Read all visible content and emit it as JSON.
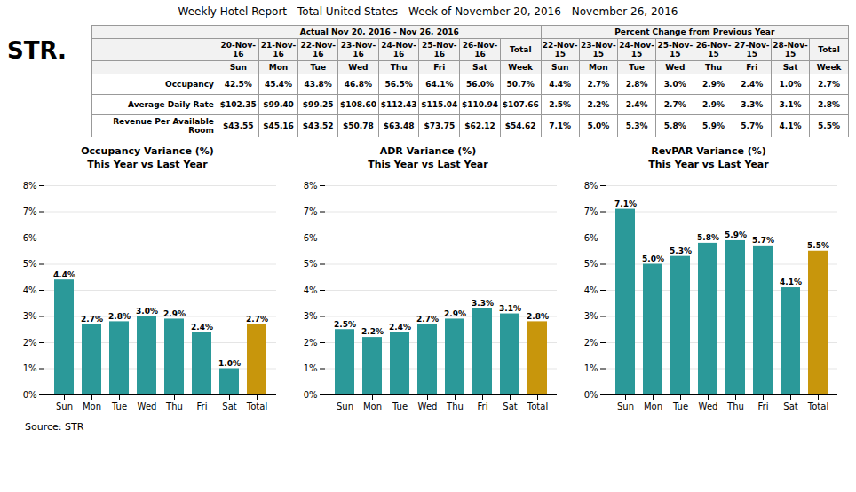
{
  "title": "Weekly Hotel Report - Total United States - Week of November 20, 2016 - November 26, 2016",
  "logo": "STR.",
  "source": "Source: STR",
  "table": {
    "header1": "Actual Nov 20, 2016 - Nov 26, 2016",
    "header2": "Percent Change from Previous Year",
    "col_dates_actual": [
      "20-Nov-16",
      "21-Nov-16",
      "22-Nov-16",
      "23-Nov-16",
      "24-Nov-16",
      "25-Nov-16",
      "26-Nov-16",
      "Total"
    ],
    "col_days_actual": [
      "Sun",
      "Mon",
      "Tue",
      "Wed",
      "Thu",
      "Fri",
      "Sat",
      "Week"
    ],
    "col_dates_pct": [
      "22-Nov-15",
      "23-Nov-15",
      "24-Nov-15",
      "25-Nov-15",
      "26-Nov-15",
      "27-Nov-15",
      "28-Nov-15",
      "Total"
    ],
    "col_days_pct": [
      "Sun",
      "Mon",
      "Tue",
      "Wed",
      "Thu",
      "Fri",
      "Sat",
      "Week"
    ],
    "rows": [
      {
        "label": "Occupancy",
        "actual": [
          "42.5%",
          "45.4%",
          "43.8%",
          "46.8%",
          "56.5%",
          "64.1%",
          "56.0%",
          "50.7%"
        ],
        "pct": [
          "4.4%",
          "2.7%",
          "2.8%",
          "3.0%",
          "2.9%",
          "2.4%",
          "1.0%",
          "2.7%"
        ]
      },
      {
        "label": "Average Daily Rate",
        "actual": [
          "$102.35",
          "$99.40",
          "$99.25",
          "$108.60",
          "$112.43",
          "$115.04",
          "$110.94",
          "$107.66"
        ],
        "pct": [
          "2.5%",
          "2.2%",
          "2.4%",
          "2.7%",
          "2.9%",
          "3.3%",
          "3.1%",
          "2.8%"
        ]
      },
      {
        "label": "Revenue Per Available Room",
        "actual": [
          "$43.55",
          "$45.16",
          "$43.52",
          "$50.78",
          "$63.48",
          "$73.75",
          "$62.12",
          "$54.62"
        ],
        "pct": [
          "7.1%",
          "5.0%",
          "5.3%",
          "5.8%",
          "5.9%",
          "5.7%",
          "4.1%",
          "5.5%"
        ]
      }
    ]
  },
  "chart_data": [
    {
      "type": "bar",
      "title": "Occupancy Variance (%)",
      "subtitle": "This Year vs Last Year",
      "categories": [
        "Sun",
        "Mon",
        "Tue",
        "Wed",
        "Thu",
        "Fri",
        "Sat",
        "Total"
      ],
      "values": [
        4.4,
        2.7,
        2.8,
        3.0,
        2.9,
        2.4,
        1.0,
        2.7
      ],
      "value_labels": [
        "4.4%",
        "2.7%",
        "2.8%",
        "3.0%",
        "2.9%",
        "2.4%",
        "1.0%",
        "2.7%"
      ],
      "colors": [
        "#2B9999",
        "#2B9999",
        "#2B9999",
        "#2B9999",
        "#2B9999",
        "#2B9999",
        "#2B9999",
        "#C8960C"
      ],
      "ylim": [
        0,
        8
      ],
      "yticks": [
        {
          "value": 0,
          "label": "0%"
        },
        {
          "value": 1,
          "label": "1%"
        },
        {
          "value": 2,
          "label": "2%"
        },
        {
          "value": 3,
          "label": "3%"
        },
        {
          "value": 4,
          "label": "4%"
        },
        {
          "value": 5,
          "label": "5%"
        },
        {
          "value": 6,
          "label": "6%"
        },
        {
          "value": 7,
          "label": "7%"
        },
        {
          "value": 8,
          "label": "8%"
        }
      ],
      "grid": true,
      "data_labels": true
    },
    {
      "type": "bar",
      "title": "ADR Variance (%)",
      "subtitle": "This Year vs Last Year",
      "categories": [
        "Sun",
        "Mon",
        "Tue",
        "Wed",
        "Thu",
        "Fri",
        "Sat",
        "Total"
      ],
      "values": [
        2.5,
        2.2,
        2.4,
        2.7,
        2.9,
        3.3,
        3.1,
        2.8
      ],
      "value_labels": [
        "2.5%",
        "2.2%",
        "2.4%",
        "2.7%",
        "2.9%",
        "3.3%",
        "3.1%",
        "2.8%"
      ],
      "colors": [
        "#2B9999",
        "#2B9999",
        "#2B9999",
        "#2B9999",
        "#2B9999",
        "#2B9999",
        "#2B9999",
        "#C8960C"
      ],
      "ylim": [
        0,
        8
      ],
      "yticks": [
        {
          "value": 0,
          "label": "0%"
        },
        {
          "value": 1,
          "label": "1%"
        },
        {
          "value": 2,
          "label": "2%"
        },
        {
          "value": 3,
          "label": "3%"
        },
        {
          "value": 4,
          "label": "4%"
        },
        {
          "value": 5,
          "label": "5%"
        },
        {
          "value": 6,
          "label": "6%"
        },
        {
          "value": 7,
          "label": "7%"
        },
        {
          "value": 8,
          "label": "8%"
        }
      ],
      "grid": true,
      "data_labels": true
    },
    {
      "type": "bar",
      "title": "RevPAR Variance (%)",
      "subtitle": "This Year vs Last Year",
      "categories": [
        "Sun",
        "Mon",
        "Tue",
        "Wed",
        "Thu",
        "Fri",
        "Sat",
        "Total"
      ],
      "values": [
        7.1,
        5.0,
        5.3,
        5.8,
        5.9,
        5.7,
        4.1,
        5.5
      ],
      "value_labels": [
        "7.1%",
        "5.0%",
        "5.3%",
        "5.8%",
        "5.9%",
        "5.7%",
        "4.1%",
        "5.5%"
      ],
      "colors": [
        "#2B9999",
        "#2B9999",
        "#2B9999",
        "#2B9999",
        "#2B9999",
        "#2B9999",
        "#2B9999",
        "#C8960C"
      ],
      "ylim": [
        0,
        8
      ],
      "yticks": [
        {
          "value": 0,
          "label": "0%"
        },
        {
          "value": 1,
          "label": "1%"
        },
        {
          "value": 2,
          "label": "2%"
        },
        {
          "value": 3,
          "label": "3%"
        },
        {
          "value": 4,
          "label": "4%"
        },
        {
          "value": 5,
          "label": "5%"
        },
        {
          "value": 6,
          "label": "6%"
        },
        {
          "value": 7,
          "label": "7%"
        },
        {
          "value": 8,
          "label": "8%"
        }
      ],
      "grid": true,
      "data_labels": true
    }
  ]
}
